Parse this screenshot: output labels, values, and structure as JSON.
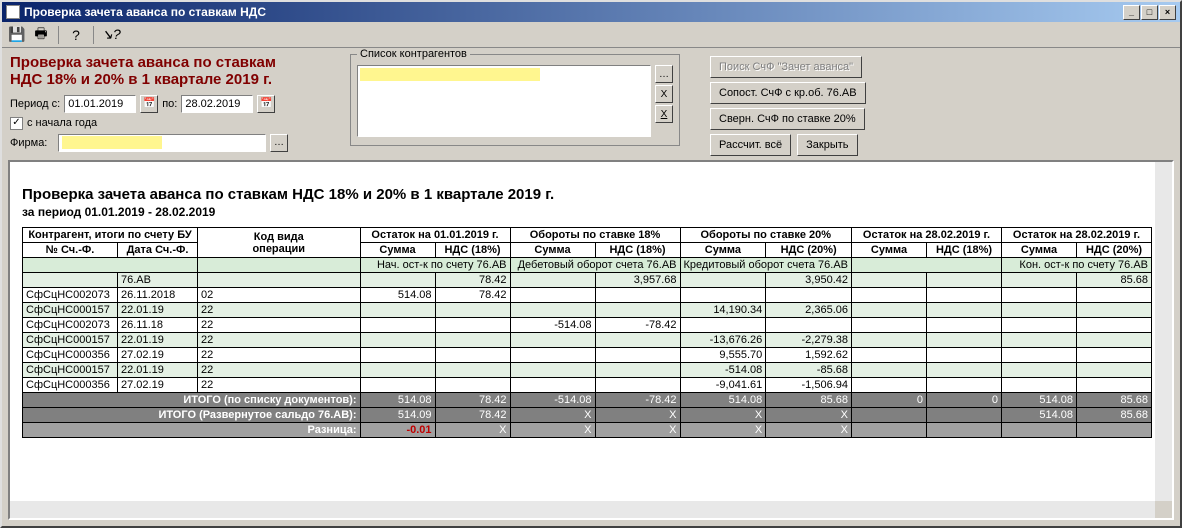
{
  "window": {
    "title": "Проверка зачета аванса по ставкам НДС"
  },
  "redTitle": {
    "line1": "Проверка зачета аванса по ставкам",
    "line2": "НДС  18% и 20% в 1 квартале 2019 г."
  },
  "period": {
    "label": "Период с:",
    "from": "01.01.2019",
    "toLabel": "по:",
    "to": "28.02.2019"
  },
  "checkbox": {
    "label": "с начала года",
    "checked": true
  },
  "firm": {
    "label": "Фирма:"
  },
  "counterparties": {
    "legend": "Список контрагентов"
  },
  "buttons": {
    "searchInvoice": "Поиск СчФ \"Зачет аванса\"",
    "compare": "Сопост. СчФ с кр.об. 76.АВ",
    "collapse": "Сверн. СчФ по ставке 20%",
    "calcAll": "Рассчит. всё",
    "close": "Закрыть"
  },
  "report": {
    "title": "Проверка зачета аванса по ставкам НДС 18% и 20% в 1 квартале 2019 г.",
    "periodLine": "за период 01.01.2019 - 28.02.2019",
    "headerGroups": {
      "g1": "Контрагент, итоги по счету БУ",
      "g2": "Код вида",
      "g2b": "операции",
      "g3": "Остаток на 01.01.2019 г.",
      "g4": "Обороты по ставке 18%",
      "g5": "Обороты по ставке 20%",
      "g6": "Остаток на 28.02.2019 г.",
      "g7": "Остаток на 28.02.2019 г."
    },
    "subHeaders": {
      "c1": "№ Сч.-Ф.",
      "c2": "Дата Сч.-Ф.",
      "sum": "Сумма",
      "vat18": "НДС (18%)",
      "vat20": "НДС (20%)"
    },
    "sectionLabels": {
      "openBal": "Нач. ост-к по счету 76.АВ",
      "debit": "Дебетовый оборот счета 76.АВ",
      "credit": "Кредитовый оборот счета 76.АВ",
      "closeBal": "Кон. ост-к по счету 76.АВ"
    },
    "rows": [
      {
        "acc": "76.АВ",
        "sum1": "",
        "vat1": "78.42",
        "sum2": "",
        "vat2": "3,957.68",
        "sum3": "",
        "vat3": "3,950.42",
        "sum4": "",
        "vat4": "",
        "sum5": "",
        "vat5": "85.68",
        "green": true
      },
      {
        "doc": "СфСцНС002073",
        "date": "26.11.2018",
        "op": "02",
        "sum1": "514.08",
        "vat1": "78.42"
      },
      {
        "doc": "СфСцНС000157",
        "date": "22.01.19",
        "op": "22",
        "sum3": "14,190.34",
        "vat3": "2,365.06",
        "green": true
      },
      {
        "doc": "СфСцНС002073",
        "date": "26.11.18",
        "op": "22",
        "sum2": "-514.08",
        "vat2": "-78.42"
      },
      {
        "doc": "СфСцНС000157",
        "date": "22.01.19",
        "op": "22",
        "sum3": "-13,676.26",
        "vat3": "-2,279.38",
        "green": true
      },
      {
        "doc": "СфСцНС000356",
        "date": "27.02.19",
        "op": "22",
        "sum3": "9,555.70",
        "vat3": "1,592.62"
      },
      {
        "doc": "СфСцНС000157",
        "date": "22.01.19",
        "op": "22",
        "sum3": "-514.08",
        "vat3": "-85.68",
        "green": true
      },
      {
        "doc": "СфСцНС000356",
        "date": "27.02.19",
        "op": "22",
        "sum3": "-9,041.61",
        "vat3": "-1,506.94"
      }
    ],
    "totals": {
      "t1label": "ИТОГО (по списку документов):",
      "t1": [
        "514.08",
        "78.42",
        "-514.08",
        "-78.42",
        "514.08",
        "85.68",
        "0",
        "0",
        "514.08",
        "85.68"
      ],
      "t2label": "ИТОГО (Развернутое сальдо 76.АВ):",
      "t2": [
        "514.09",
        "78.42",
        "X",
        "X",
        "X",
        "X",
        "",
        "",
        "514.08",
        "85.68"
      ],
      "t3label": "Разница:",
      "t3val": "-0.01",
      "x": "X"
    }
  }
}
